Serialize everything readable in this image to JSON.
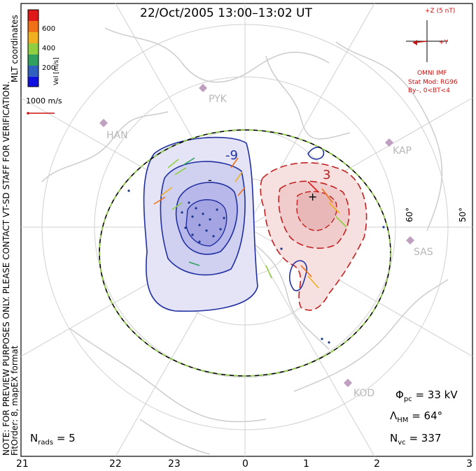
{
  "title": "22/Oct/2005 13:00–13:02 UT",
  "notes": {
    "preview": "NOTE: FOR PREVIEW PURPOSES ONLY. PLEASE CONTACT VT-SD STAFF FOR VERIFICATION.",
    "fit": "FitOrder: 8, mapEX format",
    "coords": "MLT coordinates"
  },
  "colorbar": {
    "label": "Vel [m/s]",
    "ticks": [
      "600",
      "400",
      "200"
    ],
    "colors": [
      "#e01818",
      "#f07018",
      "#f0b020",
      "#90d040",
      "#30a060",
      "#3060c0",
      "#1010e0"
    ]
  },
  "velocity_scale": "1000 m/s",
  "imf": {
    "header": "+Z (5 nT)",
    "y_label": "+Y",
    "source": "OMNI IMF",
    "model": "Stat Mod: RG96",
    "condition": "By–, 0<BT<4"
  },
  "radars": [
    "PYK",
    "HAN",
    "KAP",
    "SAS",
    "KOD"
  ],
  "latitude_labels": [
    "60°",
    "50°"
  ],
  "contour_labels": [
    "-9",
    "3",
    "-",
    "+"
  ],
  "stats": {
    "phi_pc": {
      "symbol": "Φ",
      "sub": "pc",
      "value": "= 33 kV"
    },
    "lambda_hm": {
      "symbol": "Λ",
      "sub": "HM",
      "value": "= 64°"
    },
    "n_vc": {
      "symbol": "N",
      "sub": "vc",
      "value": "= 337"
    },
    "n_rads": {
      "symbol": "N",
      "sub": "rads",
      "value": "= 5"
    }
  },
  "mlt_ticks": [
    "21",
    "22",
    "23",
    "0",
    "1",
    "2",
    "3"
  ]
}
